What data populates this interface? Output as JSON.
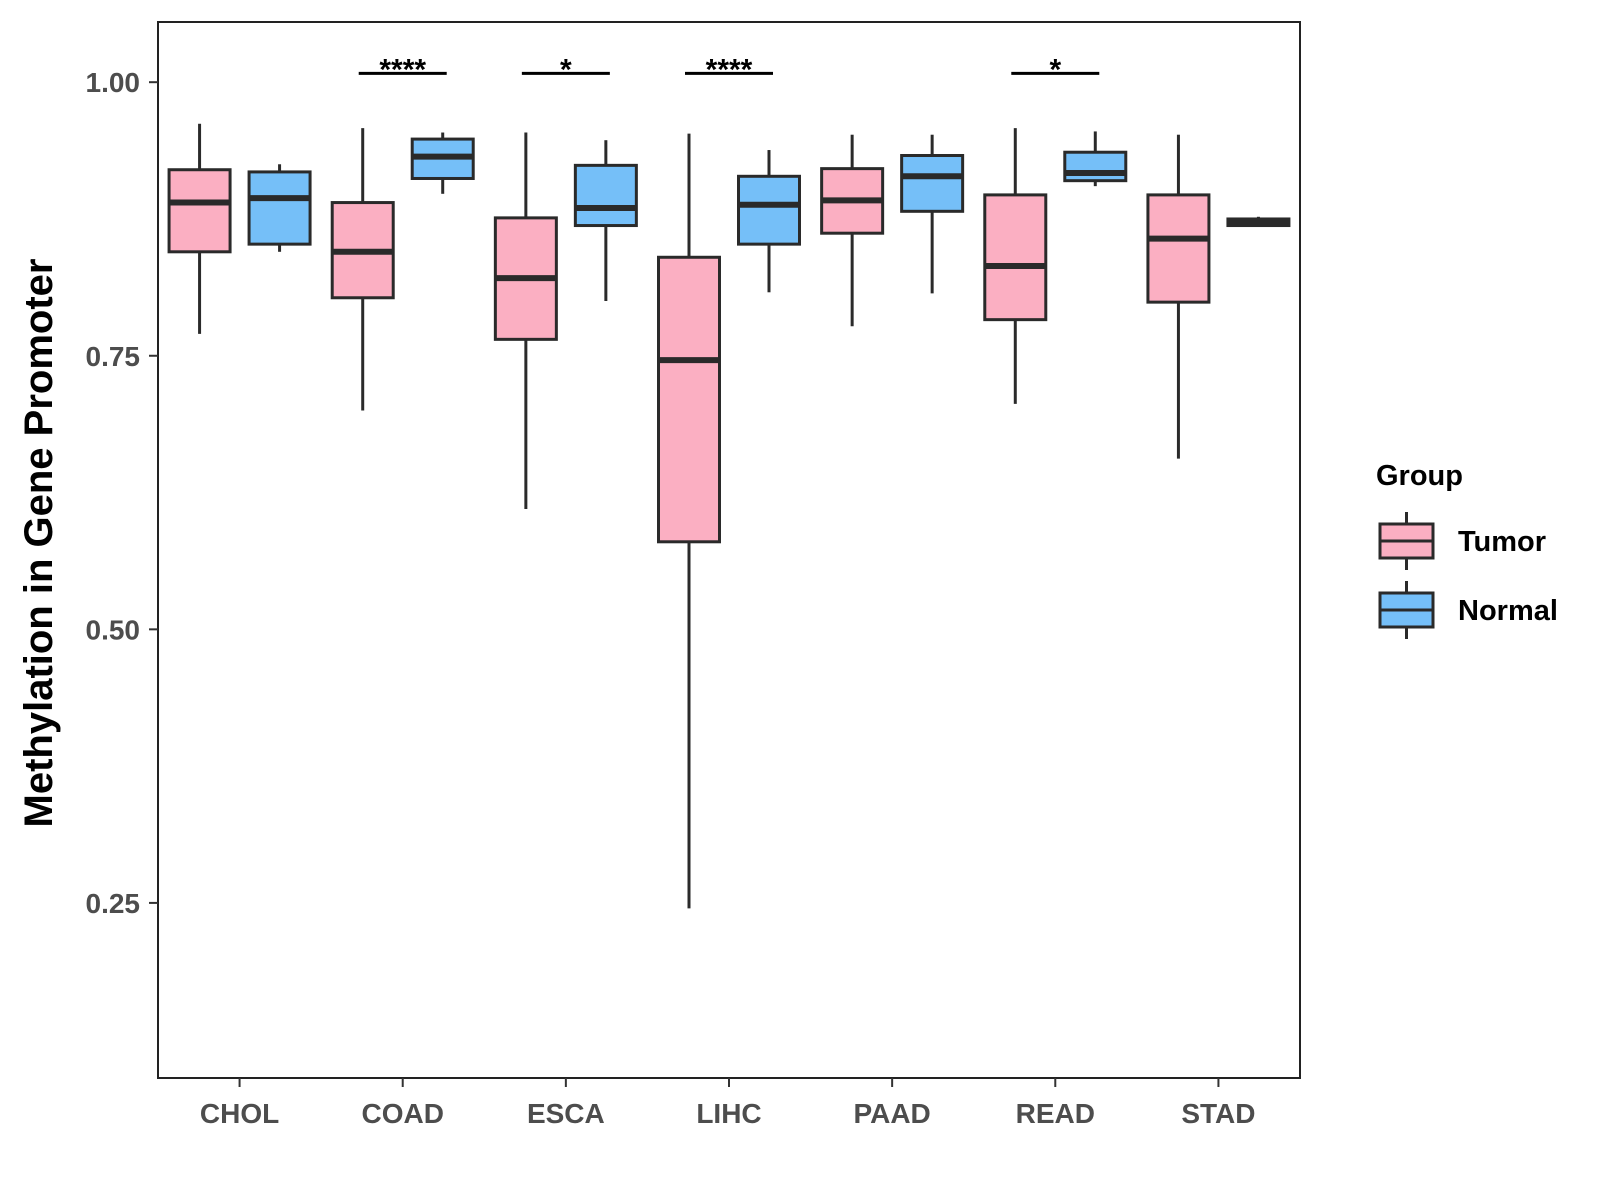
{
  "chart_data": {
    "type": "boxplot",
    "title": "",
    "xlabel": "",
    "ylabel": "Methylation in Gene Promoter",
    "ylim": [
      0.09,
      1.055
    ],
    "yticks": [
      "0.25",
      "0.50",
      "0.75",
      "1.00"
    ],
    "categories": [
      "CHOL",
      "COAD",
      "ESCA",
      "LIHC",
      "PAAD",
      "READ",
      "STAD"
    ],
    "legend": {
      "title": "Group",
      "position": "right",
      "entries": [
        {
          "name": "Tumor",
          "color": "#fbafc2"
        },
        {
          "name": "Normal",
          "color": "#75bff8"
        }
      ]
    },
    "series": [
      {
        "name": "Tumor",
        "color": "#fbafc2",
        "boxes": [
          {
            "category": "CHOL",
            "min": 0.77,
            "q1": 0.845,
            "median": 0.89,
            "q3": 0.92,
            "max": 0.962
          },
          {
            "category": "COAD",
            "min": 0.7,
            "q1": 0.803,
            "median": 0.845,
            "q3": 0.89,
            "max": 0.958
          },
          {
            "category": "ESCA",
            "min": 0.61,
            "q1": 0.765,
            "median": 0.821,
            "q3": 0.876,
            "max": 0.954
          },
          {
            "category": "LIHC",
            "min": 0.245,
            "q1": 0.58,
            "median": 0.746,
            "q3": 0.84,
            "max": 0.953
          },
          {
            "category": "PAAD",
            "min": 0.777,
            "q1": 0.862,
            "median": 0.892,
            "q3": 0.921,
            "max": 0.952
          },
          {
            "category": "READ",
            "min": 0.706,
            "q1": 0.783,
            "median": 0.832,
            "q3": 0.897,
            "max": 0.958
          },
          {
            "category": "STAD",
            "min": 0.656,
            "q1": 0.799,
            "median": 0.857,
            "q3": 0.897,
            "max": 0.952
          }
        ]
      },
      {
        "name": "Normal",
        "color": "#75bff8",
        "boxes": [
          {
            "category": "CHOL",
            "min": 0.845,
            "q1": 0.852,
            "median": 0.894,
            "q3": 0.918,
            "max": 0.925
          },
          {
            "category": "COAD",
            "min": 0.898,
            "q1": 0.912,
            "median": 0.932,
            "q3": 0.948,
            "max": 0.954
          },
          {
            "category": "ESCA",
            "min": 0.8,
            "q1": 0.869,
            "median": 0.885,
            "q3": 0.924,
            "max": 0.947
          },
          {
            "category": "LIHC",
            "min": 0.808,
            "q1": 0.852,
            "median": 0.888,
            "q3": 0.914,
            "max": 0.938
          },
          {
            "category": "PAAD",
            "min": 0.807,
            "q1": 0.882,
            "median": 0.914,
            "q3": 0.933,
            "max": 0.952
          },
          {
            "category": "READ",
            "min": 0.905,
            "q1": 0.91,
            "median": 0.917,
            "q3": 0.936,
            "max": 0.955
          },
          {
            "category": "STAD",
            "min": 0.868,
            "q1": 0.869,
            "median": 0.872,
            "q3": 0.875,
            "max": 0.877
          }
        ]
      }
    ],
    "annotations": [
      {
        "category": "COAD",
        "label": "****",
        "y": 1.008
      },
      {
        "category": "ESCA",
        "label": "*",
        "y": 1.008
      },
      {
        "category": "LIHC",
        "label": "****",
        "y": 1.008
      },
      {
        "category": "READ",
        "label": "*",
        "y": 1.008
      }
    ]
  }
}
